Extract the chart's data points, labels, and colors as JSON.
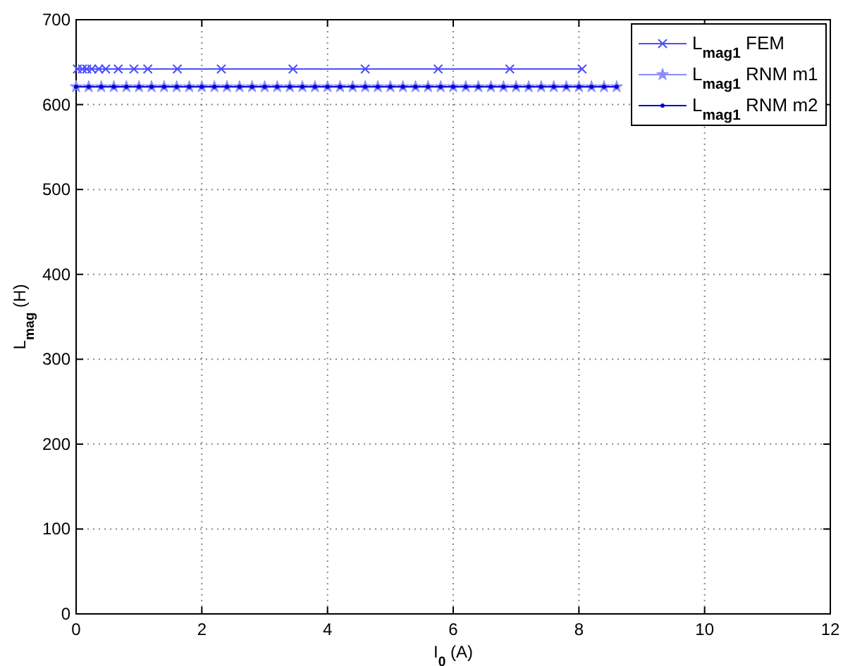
{
  "chart_data": {
    "type": "line",
    "xlabel": "I$_{0}$ (A)",
    "ylabel": "L$_{mag}$ (H)",
    "xlim": [
      0,
      12
    ],
    "xticks": [
      0,
      2,
      4,
      6,
      8,
      10,
      12
    ],
    "ylim": [
      0,
      700
    ],
    "yticks": [
      0,
      100,
      200,
      300,
      400,
      500,
      600,
      700
    ],
    "grid": true,
    "legend": "top right",
    "series": [
      {
        "name": "L$_{mag1}$ FEM",
        "color": "#4d4dff",
        "marker": "cross",
        "x": [
          0.02,
          0.1,
          0.17,
          0.25,
          0.36,
          0.47,
          0.67,
          0.92,
          1.14,
          1.61,
          2.31,
          3.45,
          4.6,
          5.76,
          6.9,
          8.05
        ],
        "values": [
          642,
          642,
          642,
          642,
          642,
          642,
          642,
          642,
          642,
          642,
          642,
          642,
          642,
          642,
          642,
          642
        ]
      },
      {
        "name": "L$_{mag1}$ RNM m1",
        "color": "#8c8cff",
        "marker": "star",
        "x": [
          0,
          0.2,
          0.4,
          0.6,
          0.8,
          1,
          1.2,
          1.4,
          1.6,
          1.8,
          2,
          2.2,
          2.4,
          2.6,
          2.8,
          3,
          3.2,
          3.4,
          3.6,
          3.8,
          4,
          4.2,
          4.4,
          4.6,
          4.8,
          5,
          5.2,
          5.4,
          5.6,
          5.8,
          6,
          6.2,
          6.4,
          6.6,
          6.8,
          7,
          7.2,
          7.4,
          7.6,
          7.8,
          8,
          8.2,
          8.4,
          8.6
        ],
        "values": [
          621,
          621,
          621,
          621,
          621,
          621,
          621,
          621,
          621,
          621,
          621,
          621,
          621,
          621,
          621,
          621,
          621,
          621,
          621,
          621,
          621,
          621,
          621,
          621,
          621,
          621,
          621,
          621,
          621,
          621,
          621,
          621,
          621,
          621,
          621,
          621,
          621,
          621,
          621,
          621,
          621,
          621,
          621,
          621
        ]
      },
      {
        "name": "L$_{mag1}$ RNM m2",
        "color": "#0000cc",
        "marker": "circle",
        "x": [
          0,
          0.2,
          0.4,
          0.6,
          0.8,
          1,
          1.2,
          1.4,
          1.6,
          1.8,
          2,
          2.2,
          2.4,
          2.6,
          2.8,
          3,
          3.2,
          3.4,
          3.6,
          3.8,
          4,
          4.2,
          4.4,
          4.6,
          4.8,
          5,
          5.2,
          5.4,
          5.6,
          5.8,
          6,
          6.2,
          6.4,
          6.6,
          6.8,
          7,
          7.2,
          7.4,
          7.6,
          7.8,
          8,
          8.2,
          8.4,
          8.6
        ],
        "values": [
          621,
          621,
          621,
          621,
          621,
          621,
          621,
          621,
          621,
          621,
          621,
          621,
          621,
          621,
          621,
          621,
          621,
          621,
          621,
          621,
          621,
          621,
          621,
          621,
          621,
          621,
          621,
          621,
          621,
          621,
          621,
          621,
          621,
          621,
          621,
          621,
          621,
          621,
          621,
          621,
          621,
          621,
          621,
          621
        ]
      }
    ]
  }
}
